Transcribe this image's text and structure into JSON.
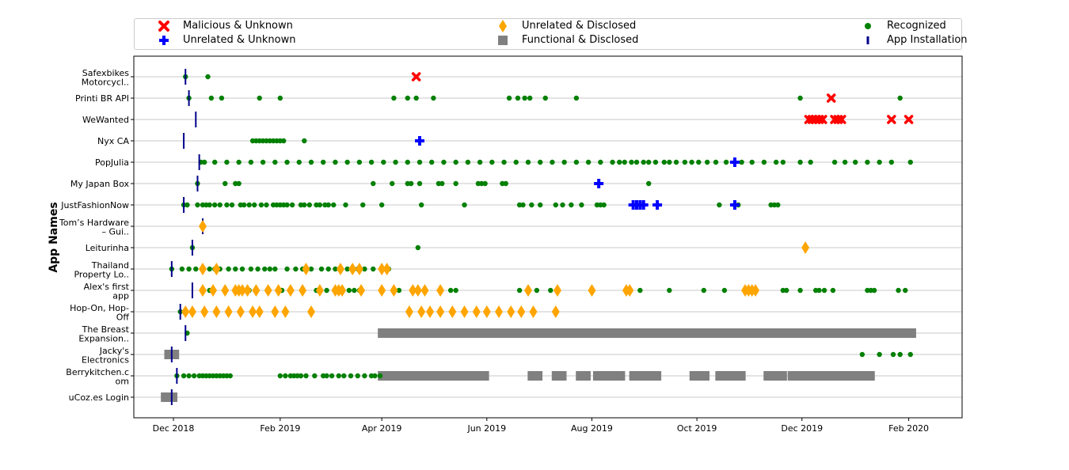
{
  "chart_data": {
    "type": "timeline",
    "ylabel": "App Names",
    "xlabel": "",
    "x_ticks": [
      "Dec 2018",
      "Feb 2019",
      "Apr 2019",
      "Jun 2019",
      "Aug 2019",
      "Oct 2019",
      "Dec 2019",
      "Feb 2020"
    ],
    "xlim": [
      "2018-11-08",
      "2020-03-03"
    ],
    "grid": "horizontal",
    "legend_position": "top",
    "colors": {
      "malicious": "#ff0000",
      "unrelated_unknown": "#0000ff",
      "unrelated_disclosed": "#ffa500",
      "functional": "#808080",
      "recognized": "#008000",
      "installation": "#00008b"
    },
    "legend": [
      {
        "key": "malicious",
        "label": "Malicious & Unknown",
        "marker": "x"
      },
      {
        "key": "unrelated_unknown",
        "label": "Unrelated & Unknown",
        "marker": "plus"
      },
      {
        "key": "unrelated_disclosed",
        "label": "Unrelated & Disclosed",
        "marker": "diamond"
      },
      {
        "key": "functional",
        "label": "Functional & Disclosed",
        "marker": "square"
      },
      {
        "key": "recognized",
        "label": "Recognized",
        "marker": "dot"
      },
      {
        "key": "installation",
        "label": "App Installation",
        "marker": "line"
      }
    ],
    "apps": [
      {
        "name": "Safexbikes Motorcycl..",
        "lines": [
          "Safexbikes",
          "Motorcycl.."
        ],
        "install": "2018-12-08",
        "recognized": [
          "2018-12-08",
          "2018-12-21"
        ],
        "malicious": [
          "2019-04-21"
        ]
      },
      {
        "name": "Printi BR API",
        "lines": [
          "Printi BR API"
        ],
        "install": "2018-12-10",
        "recognized": [
          "2018-12-10",
          "2018-12-23",
          "2018-12-29",
          "2019-01-20",
          "2019-02-01",
          "2019-04-08",
          "2019-04-16",
          "2019-04-21",
          "2019-05-01",
          "2019-06-14",
          "2019-06-19",
          "2019-06-23",
          "2019-06-26",
          "2019-07-05",
          "2019-07-23",
          "2019-11-30",
          "2020-01-27"
        ],
        "malicious": [
          "2019-12-18"
        ]
      },
      {
        "name": "WeWanted",
        "lines": [
          "WeWanted"
        ],
        "install": "2018-12-14",
        "malicious": [
          "2019-12-05",
          "2019-12-07",
          "2019-12-09",
          "2019-12-11",
          "2019-12-13",
          "2019-12-20",
          "2019-12-22",
          "2019-12-24",
          "2020-01-22",
          "2020-02-01"
        ]
      },
      {
        "name": "Nyx CA",
        "lines": [
          "Nyx CA"
        ],
        "install": "2018-12-07",
        "recognized": [
          "2019-01-16",
          "2019-01-18",
          "2019-01-20",
          "2019-01-22",
          "2019-01-24",
          "2019-01-26",
          "2019-01-28",
          "2019-01-30",
          "2019-02-01",
          "2019-02-03",
          "2019-02-15"
        ],
        "unrelated_unknown": [
          "2019-04-23"
        ]
      },
      {
        "name": "PopJulia",
        "lines": [
          "PopJulia"
        ],
        "install": "2018-12-16",
        "recognized": [
          "2018-12-17",
          "2018-12-19",
          "2018-12-25",
          "2019-01-01",
          "2019-01-08",
          "2019-01-15",
          "2019-01-22",
          "2019-01-29",
          "2019-02-05",
          "2019-02-12",
          "2019-02-19",
          "2019-02-26",
          "2019-03-05",
          "2019-03-12",
          "2019-03-19",
          "2019-03-26",
          "2019-04-02",
          "2019-04-09",
          "2019-04-16",
          "2019-04-23",
          "2019-04-30",
          "2019-05-07",
          "2019-05-14",
          "2019-05-21",
          "2019-05-28",
          "2019-06-04",
          "2019-06-11",
          "2019-06-18",
          "2019-06-25",
          "2019-07-02",
          "2019-07-09",
          "2019-07-16",
          "2019-07-23",
          "2019-07-30",
          "2019-08-06",
          "2019-08-13",
          "2019-08-17",
          "2019-08-20",
          "2019-08-24",
          "2019-08-27",
          "2019-08-31",
          "2019-09-03",
          "2019-09-07",
          "2019-09-12",
          "2019-09-15",
          "2019-09-19",
          "2019-09-24",
          "2019-09-28",
          "2019-10-02",
          "2019-10-07",
          "2019-10-12",
          "2019-10-18",
          "2019-10-27",
          "2019-11-02",
          "2019-11-09",
          "2019-11-16",
          "2019-11-20",
          "2019-11-30",
          "2019-12-06",
          "2019-12-20",
          "2019-12-26",
          "2020-01-01",
          "2020-01-08",
          "2020-01-15",
          "2020-01-22",
          "2020-02-02"
        ],
        "unrelated_unknown": [
          "2019-10-23"
        ]
      },
      {
        "name": "My Japan Box",
        "lines": [
          "My Japan Box"
        ],
        "install": "2018-12-15",
        "recognized": [
          "2018-12-15",
          "2018-12-31",
          "2019-01-06",
          "2019-01-08",
          "2019-03-27",
          "2019-04-07",
          "2019-04-16",
          "2019-04-18",
          "2019-04-23",
          "2019-05-04",
          "2019-05-06",
          "2019-05-14",
          "2019-05-27",
          "2019-05-29",
          "2019-05-31",
          "2019-06-10",
          "2019-06-12",
          "2019-09-03"
        ],
        "unrelated_unknown": [
          "2019-08-05"
        ]
      },
      {
        "name": "JustFashionNow",
        "lines": [
          "JustFashionNow"
        ],
        "install": "2018-12-07",
        "recognized": [
          "2018-12-07",
          "2018-12-09",
          "2018-12-15",
          "2018-12-18",
          "2018-12-20",
          "2018-12-22",
          "2018-12-25",
          "2018-12-28",
          "2019-01-01",
          "2019-01-04",
          "2019-01-09",
          "2019-01-11",
          "2019-01-14",
          "2019-01-17",
          "2019-01-21",
          "2019-01-24",
          "2019-01-28",
          "2019-01-30",
          "2019-02-01",
          "2019-02-03",
          "2019-02-05",
          "2019-02-08",
          "2019-02-13",
          "2019-02-15",
          "2019-02-18",
          "2019-02-22",
          "2019-02-24",
          "2019-02-27",
          "2019-03-01",
          "2019-03-04",
          "2019-03-11",
          "2019-03-21",
          "2019-04-01",
          "2019-04-24",
          "2019-05-19",
          "2019-06-20",
          "2019-06-22",
          "2019-06-27",
          "2019-07-02",
          "2019-07-11",
          "2019-07-15",
          "2019-07-20",
          "2019-07-26",
          "2019-08-04",
          "2019-08-06",
          "2019-08-08",
          "2019-10-14",
          "2019-10-25",
          "2019-11-13",
          "2019-11-15",
          "2019-11-17"
        ],
        "unrelated_unknown": [
          "2019-08-25",
          "2019-08-27",
          "2019-08-29",
          "2019-08-31",
          "2019-09-08",
          "2019-10-23"
        ]
      },
      {
        "name": "Tom's Hardware – Gui..",
        "lines": [
          "Tom’s Hardware",
          "– Gui.."
        ],
        "install": "2018-12-18",
        "unrelated_disclosed": [
          "2018-12-18"
        ]
      },
      {
        "name": "Leiturinha",
        "lines": [
          "Leiturinha"
        ],
        "install": "2018-12-12",
        "recognized": [
          "2018-12-12",
          "2019-04-22"
        ],
        "unrelated_disclosed": [
          "2019-12-03"
        ]
      },
      {
        "name": "Thailand Property Lo..",
        "lines": [
          "Thailand",
          "Property Lo.."
        ],
        "install": "2018-11-30",
        "recognized": [
          "2018-11-30",
          "2018-12-06",
          "2018-12-10",
          "2018-12-14",
          "2018-12-22",
          "2018-12-25",
          "2018-12-28",
          "2019-01-02",
          "2019-01-06",
          "2019-01-10",
          "2019-01-15",
          "2019-01-19",
          "2019-01-23",
          "2019-01-26",
          "2019-01-29",
          "2019-02-05",
          "2019-02-10",
          "2019-02-14",
          "2019-02-19",
          "2019-02-25",
          "2019-03-01",
          "2019-03-05",
          "2019-03-12",
          "2019-03-18",
          "2019-03-22",
          "2019-03-27",
          "2019-04-05"
        ],
        "unrelated_disclosed": [
          "2018-12-18",
          "2018-12-26",
          "2019-02-16",
          "2019-03-08",
          "2019-03-15",
          "2019-03-19",
          "2019-04-01",
          "2019-04-04"
        ]
      },
      {
        "name": "Alex's first app",
        "lines": [
          "Alex's first",
          "app"
        ],
        "install": "2018-12-12",
        "recognized": [
          "2018-12-22",
          "2019-01-09",
          "2019-01-14",
          "2019-02-02",
          "2019-02-22",
          "2019-02-28",
          "2019-03-13",
          "2019-03-16",
          "2019-03-19",
          "2019-04-11",
          "2019-04-26",
          "2019-05-11",
          "2019-05-14",
          "2019-06-20",
          "2019-06-30",
          "2019-07-08",
          "2019-08-29",
          "2019-09-15",
          "2019-10-05",
          "2019-10-17",
          "2019-11-04",
          "2019-11-20",
          "2019-11-22",
          "2019-11-30",
          "2019-12-09",
          "2019-12-11",
          "2019-12-14",
          "2019-12-19",
          "2020-01-08",
          "2020-01-10",
          "2020-01-12",
          "2020-01-26",
          "2020-01-30"
        ],
        "unrelated_disclosed": [
          "2018-12-18",
          "2018-12-24",
          "2018-12-31",
          "2019-01-06",
          "2019-01-08",
          "2019-01-10",
          "2019-01-13",
          "2019-01-18",
          "2019-01-25",
          "2019-01-31",
          "2019-02-07",
          "2019-02-14",
          "2019-02-24",
          "2019-03-05",
          "2019-03-07",
          "2019-03-09",
          "2019-03-20",
          "2019-04-01",
          "2019-04-08",
          "2019-04-19",
          "2019-04-22",
          "2019-04-26",
          "2019-05-05",
          "2019-06-25",
          "2019-07-12",
          "2019-08-01",
          "2019-08-21",
          "2019-08-23",
          "2019-10-29",
          "2019-10-31",
          "2019-11-02",
          "2019-11-04"
        ]
      },
      {
        "name": "Hop-On, Hop-Off",
        "lines": [
          "Hop-On, Hop-",
          "Off"
        ],
        "install": "2018-12-05",
        "recognized": [
          "2018-12-05"
        ],
        "unrelated_disclosed": [
          "2018-12-08",
          "2018-12-12",
          "2018-12-19",
          "2018-12-26",
          "2019-01-02",
          "2019-01-09",
          "2019-01-16",
          "2019-01-20",
          "2019-01-29",
          "2019-02-04",
          "2019-02-19",
          "2019-04-17",
          "2019-04-24",
          "2019-04-29",
          "2019-05-05",
          "2019-05-12",
          "2019-05-19",
          "2019-05-26",
          "2019-06-01",
          "2019-06-08",
          "2019-06-15",
          "2019-06-21",
          "2019-06-28",
          "2019-07-11"
        ]
      },
      {
        "name": "The Breast Expansion..",
        "lines": [
          "The Breast",
          "Expansion.."
        ],
        "install": "2018-12-08",
        "recognized": [
          "2018-12-09"
        ],
        "functional": [
          [
            "2019-04-01",
            "2020-02-03"
          ]
        ]
      },
      {
        "name": "Jacky's Electronics",
        "lines": [
          "Jacky's",
          "Electronics"
        ],
        "install": "2018-11-30",
        "recognized": [
          "2020-01-05",
          "2020-01-15",
          "2020-01-23",
          "2020-01-27",
          "2020-02-02"
        ],
        "functional": [
          [
            "2018-11-28",
            "2018-12-02"
          ]
        ]
      },
      {
        "name": "Berrykitchen.com",
        "lines": [
          "Berrykitchen.c",
          "om"
        ],
        "install": "2018-12-03",
        "recognized": [
          "2018-12-03",
          "2018-12-07",
          "2018-12-10",
          "2018-12-13",
          "2018-12-16",
          "2018-12-18",
          "2018-12-20",
          "2018-12-22",
          "2018-12-24",
          "2018-12-26",
          "2018-12-28",
          "2018-12-30",
          "2019-01-01",
          "2019-01-03",
          "2019-02-01",
          "2019-02-04",
          "2019-02-07",
          "2019-02-09",
          "2019-02-11",
          "2019-02-13",
          "2019-02-16",
          "2019-02-21",
          "2019-02-26",
          "2019-02-28",
          "2019-03-03",
          "2019-03-07",
          "2019-03-10",
          "2019-03-14",
          "2019-03-18",
          "2019-03-22",
          "2019-03-26",
          "2019-03-28",
          "2019-03-31"
        ],
        "functional": [
          [
            "2019-04-01",
            "2019-04-13"
          ],
          [
            "2019-04-16",
            "2019-05-31"
          ],
          [
            "2019-06-27",
            "2019-07-01"
          ],
          [
            "2019-07-11",
            "2019-07-15"
          ],
          [
            "2019-07-25",
            "2019-07-29"
          ],
          [
            "2019-08-04",
            "2019-08-08"
          ],
          [
            "2019-08-12",
            "2019-08-18"
          ],
          [
            "2019-08-25",
            "2019-08-29"
          ],
          [
            "2019-09-02",
            "2019-09-08"
          ],
          [
            "2019-09-29",
            "2019-10-06"
          ],
          [
            "2019-10-14",
            "2019-10-21"
          ],
          [
            "2019-10-23",
            "2019-10-27"
          ],
          [
            "2019-11-11",
            "2019-11-20"
          ],
          [
            "2019-11-25",
            "2019-12-01"
          ],
          [
            "2019-12-04",
            "2019-12-08"
          ],
          [
            "2019-12-11",
            "2019-12-15"
          ],
          [
            "2019-12-18",
            "2019-12-28"
          ],
          [
            "2019-12-30",
            "2020-01-10"
          ]
        ]
      },
      {
        "name": "uCoz.es Login",
        "lines": [
          "uCoz.es Login"
        ],
        "install": "2018-11-30",
        "functional": [
          [
            "2018-11-26",
            "2018-12-01"
          ]
        ]
      }
    ]
  }
}
